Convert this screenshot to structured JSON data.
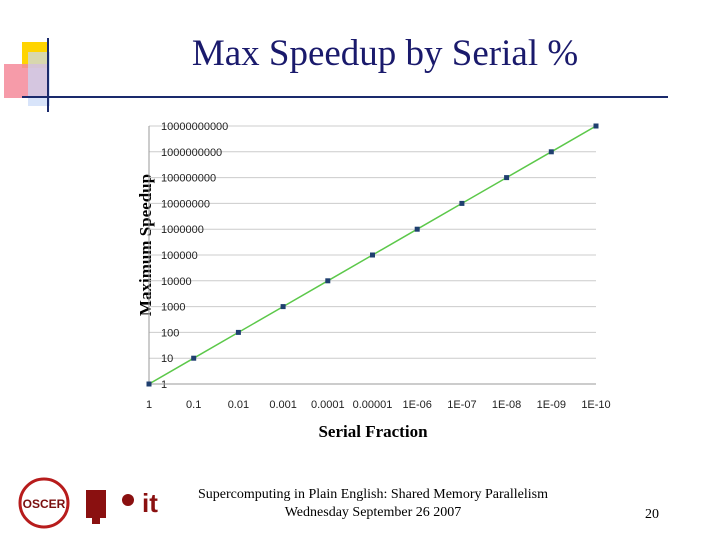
{
  "chart_data": {
    "type": "line",
    "title": "Max Speedup by Serial %",
    "x_label": "Serial Fraction",
    "y_label": "Maximum Speedup",
    "categories": [
      "1",
      "0.1",
      "0.01",
      "0.001",
      "0.0001",
      "0.00001",
      "1E-06",
      "1E-07",
      "1E-08",
      "1E-09",
      "1E-10"
    ],
    "series": [
      {
        "color": "#5cc84a",
        "marker_color": "#1f3f6f",
        "values": [
          1,
          10,
          100,
          1000,
          10000,
          100000,
          1000000,
          10000000,
          100000000,
          1000000000,
          10000000000
        ]
      }
    ],
    "y_scale": "log",
    "ylim": [
      1,
      10000000000
    ],
    "yticks": [
      1,
      10,
      100,
      1000,
      10000,
      100000,
      1000000,
      10000000,
      100000000,
      1000000000,
      10000000000
    ],
    "grid": true
  },
  "footer": {
    "lines": [
      "Supercomputing in Plain English: Shared Memory Parallelism",
      "Wednesday September 26 2007"
    ],
    "page_number": "20",
    "logos": [
      "OSCER",
      "it"
    ]
  }
}
